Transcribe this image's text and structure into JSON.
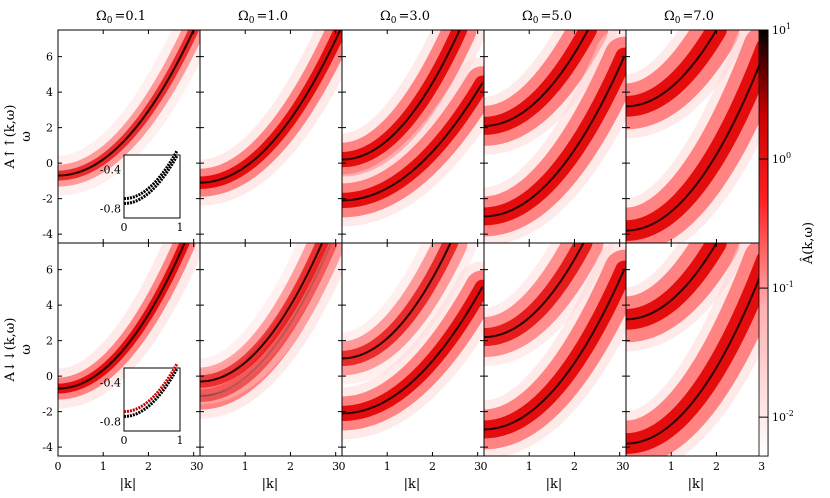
{
  "chart_data": {
    "type": "heatmap",
    "columns": [
      {
        "omega0": 0.1,
        "title_sym": "Ω",
        "title_sub": "0",
        "title_val": "=0.1"
      },
      {
        "omega0": 1.0,
        "title_sym": "Ω",
        "title_sub": "0",
        "title_val": "=1.0"
      },
      {
        "omega0": 3.0,
        "title_sym": "Ω",
        "title_sub": "0",
        "title_val": "=3.0"
      },
      {
        "omega0": 5.0,
        "title_sym": "Ω",
        "title_sub": "0",
        "title_val": "=5.0"
      },
      {
        "omega0": 7.0,
        "title_sym": "Ω",
        "title_sub": "0",
        "title_val": "=7.0"
      }
    ],
    "rows": [
      {
        "id": "up",
        "ylabel": "A↑↑(k,ω)",
        "ylabel2": "ω"
      },
      {
        "id": "down",
        "ylabel": "A↓↓(k,ω)",
        "ylabel2": "ω"
      }
    ],
    "xlabel": "|k|",
    "xlim": [
      0,
      3.14
    ],
    "ylim": [
      -4.5,
      7.5
    ],
    "xticks": [
      0,
      1,
      2,
      3
    ],
    "xtick_labels": [
      "0",
      "1",
      "2",
      "3"
    ],
    "yticks": [
      -4,
      -2,
      0,
      2,
      4,
      6
    ],
    "ytick_labels": [
      "-4",
      "-2",
      "0",
      "2",
      "4",
      "6"
    ],
    "colorbar": {
      "label": "Â(k,ω)",
      "scale": "log",
      "range": [
        0.005,
        10
      ],
      "ticks": [
        0.01,
        0.1,
        1,
        10
      ],
      "tick_base": "10",
      "tick_exps": [
        "-2",
        "-1",
        "0",
        "1"
      ],
      "colors": [
        "#ffffff",
        "#ff0000",
        "#000000"
      ]
    },
    "inset": {
      "xlim": [
        0,
        1
      ],
      "ylim": [
        -0.9,
        -0.25
      ],
      "xticks": [
        0,
        1
      ],
      "xtick_labels": [
        "0",
        "1"
      ],
      "yticks": [
        -0.8,
        -0.4
      ],
      "ytick_labels": [
        "-0.8",
        "-0.4"
      ]
    },
    "dispersion": {
      "relation": "ω = k² − offset",
      "offset": 0.8,
      "band_centers": {
        "up": [
          [
            {
              "k0": 0.0,
              "w0": -0.7,
              "k1": 3.0,
              "w1": 7.5,
              "strength": 0.8
            }
          ],
          [
            {
              "k0": 0.0,
              "w0": -1.1,
              "k1": 3.1,
              "w1": 7.5,
              "strength": 1.0
            }
          ],
          [
            {
              "k0": 0.0,
              "w0": 0.2,
              "k1": 2.6,
              "w1": 7.5,
              "strength": 1.0
            },
            {
              "k0": 0.0,
              "w0": -2.1,
              "k1": 3.1,
              "w1": 4.5,
              "strength": 1.0
            }
          ],
          [
            {
              "k0": 0.0,
              "w0": 2.1,
              "k1": 2.3,
              "w1": 7.5,
              "strength": 1.0
            },
            {
              "k0": 0.0,
              "w0": -3.0,
              "k1": 3.1,
              "w1": 6.0,
              "strength": 1.0
            }
          ],
          [
            {
              "k0": 0.0,
              "w0": 3.2,
              "k1": 2.0,
              "w1": 7.5,
              "strength": 1.0
            },
            {
              "k0": 0.0,
              "w0": -3.8,
              "k1": 3.1,
              "w1": 6.5,
              "strength": 1.0
            }
          ]
        ],
        "down": [
          [
            {
              "k0": 0.0,
              "w0": -0.7,
              "k1": 2.8,
              "w1": 7.5,
              "strength": 1.0
            }
          ],
          [
            {
              "k0": 0.0,
              "w0": -1.1,
              "k1": 2.9,
              "w1": 7.5,
              "strength": 1.0
            },
            {
              "k0": 0.0,
              "w0": -0.3,
              "k1": 2.7,
              "w1": 7.5,
              "strength": 0.7
            }
          ],
          [
            {
              "k0": 0.0,
              "w0": 1.0,
              "k1": 2.4,
              "w1": 7.5,
              "strength": 0.8
            },
            {
              "k0": 0.0,
              "w0": -2.1,
              "k1": 3.1,
              "w1": 5.0,
              "strength": 1.0
            }
          ],
          [
            {
              "k0": 0.0,
              "w0": 2.2,
              "k1": 2.2,
              "w1": 7.5,
              "strength": 0.9
            },
            {
              "k0": 0.0,
              "w0": -3.0,
              "k1": 3.1,
              "w1": 6.0,
              "strength": 1.0
            }
          ],
          [
            {
              "k0": 0.0,
              "w0": 3.2,
              "k1": 2.0,
              "w1": 7.5,
              "strength": 1.0
            },
            {
              "k0": 0.0,
              "w0": -3.8,
              "k1": 3.1,
              "w1": 6.5,
              "strength": 1.0
            }
          ]
        ]
      }
    }
  }
}
